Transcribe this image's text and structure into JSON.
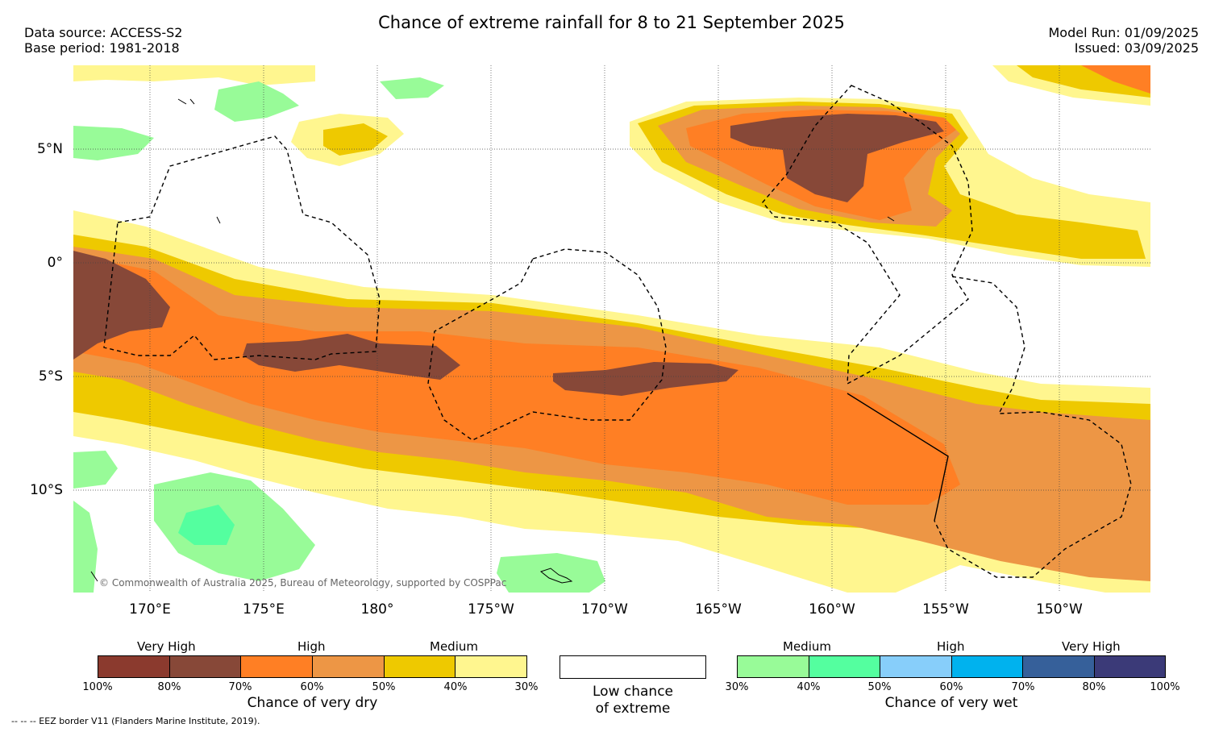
{
  "header": {
    "title": "Chance of extreme rainfall for 8 to 21 September 2025",
    "data_source": "Data source: ACCESS-S2",
    "base_period": "Base period: 1981-2018",
    "model_run": "Model Run: 01/09/2025",
    "issued": "Issued: 03/09/2025"
  },
  "map": {
    "lat_labels": [
      "5°N",
      "0°",
      "5°S",
      "10°S"
    ],
    "lon_labels": [
      "170°E",
      "175°E",
      "180°",
      "175°W",
      "170°W",
      "165°W",
      "160°W",
      "155°W",
      "150°W"
    ],
    "copyright": "© Commonwealth of Australia 2025, Bureau of Meteorology, supported by COSPPac",
    "colors": {
      "dry_100_80": "#8b3a2e",
      "dry_80_70": "#874838",
      "dry_70_60": "#ff7f24",
      "dry_60_50": "#ed9645",
      "dry_50_40": "#eec900",
      "dry_40_30": "#fff68f",
      "wet_30_40": "#98fb98",
      "wet_40_50": "#54ff9f",
      "wet_50_60": "#87cefa",
      "wet_60_70": "#00b2ee",
      "wet_70_80": "#36609a",
      "wet_80_100": "#3b3a78"
    }
  },
  "legend": {
    "dry": {
      "categories": [
        "Very High",
        "High",
        "Medium"
      ],
      "colors": [
        "#8b3a2e",
        "#874838",
        "#ff7f24",
        "#ed9645",
        "#eec900",
        "#fff68f"
      ],
      "ticks": [
        "100%",
        "80%",
        "70%",
        "60%",
        "50%",
        "40%",
        "30%"
      ],
      "title": "Chance of very dry"
    },
    "low": {
      "line1": "Low chance",
      "line2": "of extreme"
    },
    "wet": {
      "categories": [
        "Medium",
        "High",
        "Very High"
      ],
      "colors": [
        "#98fb98",
        "#54ff9f",
        "#87cefa",
        "#00b2ee",
        "#36609a",
        "#3b3a78"
      ],
      "ticks": [
        "30%",
        "40%",
        "50%",
        "60%",
        "70%",
        "80%",
        "100%"
      ],
      "title": "Chance of very wet"
    }
  },
  "footnote": "--  --  -- EEZ border V11 (Flanders Marine Institute, 2019)."
}
